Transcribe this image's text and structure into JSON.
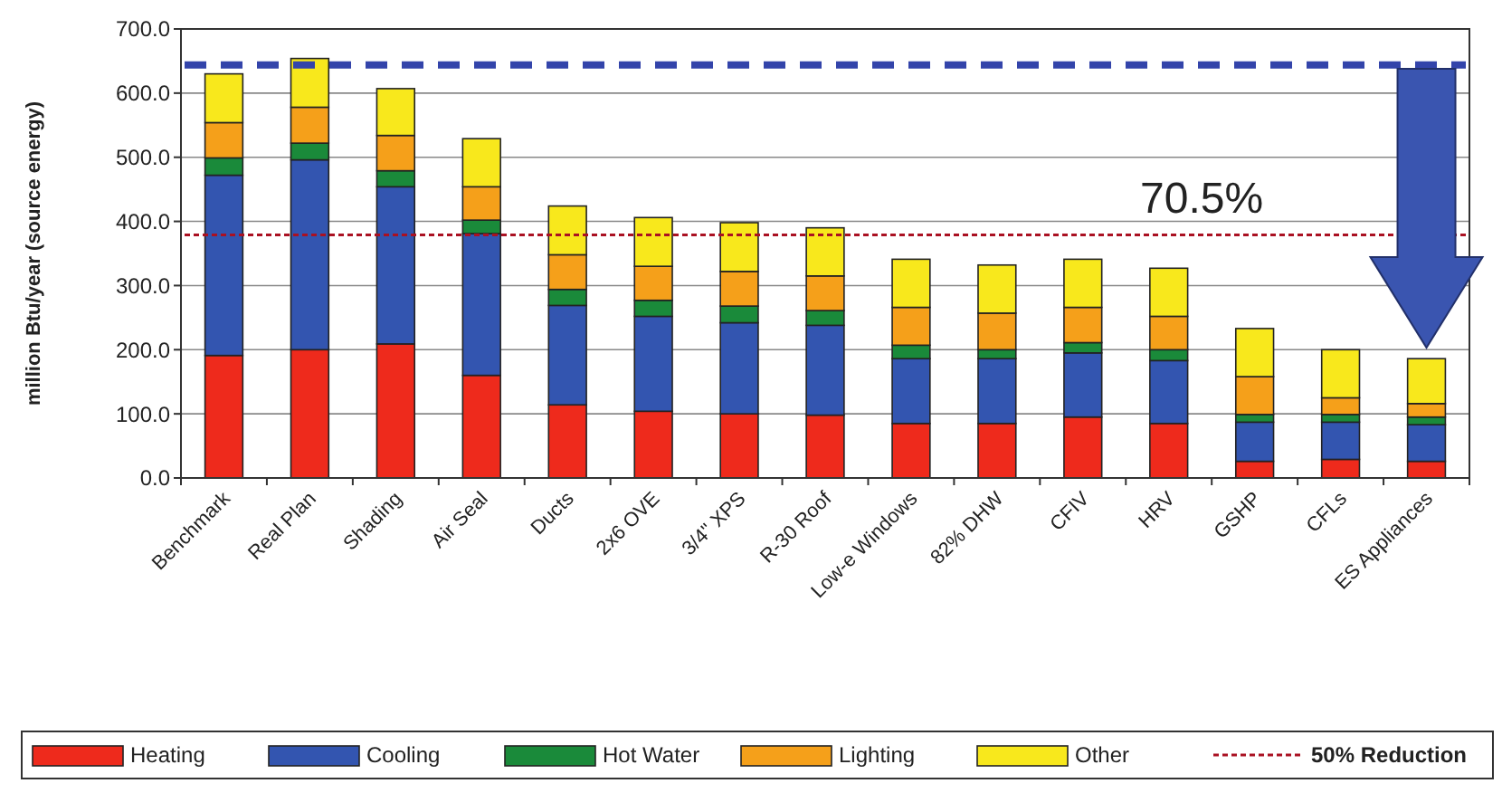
{
  "chart_data": {
    "type": "bar",
    "stacked": true,
    "ylabel": "million Btu/year (source energy)",
    "categories": [
      "Benchmark",
      "Real Plan",
      "Shading",
      "Air Seal",
      "Ducts",
      "2x6 OVE",
      "3/4\" XPS",
      "R-30 Roof",
      "Low-e Windows",
      "82% DHW",
      "CFIV",
      "HRV",
      "GSHP",
      "CFLs",
      "ES Appliances"
    ],
    "series": [
      {
        "name": "Heating",
        "color": "#ee2a1c",
        "values": [
          191,
          200,
          209,
          160,
          114,
          104,
          100,
          98,
          85,
          85,
          95,
          85,
          26,
          29,
          26
        ]
      },
      {
        "name": "Cooling",
        "color": "#3355b0",
        "values": [
          281,
          296,
          245,
          221,
          155,
          148,
          142,
          140,
          101,
          101,
          100,
          98,
          61,
          58,
          57
        ]
      },
      {
        "name": "Hot Water",
        "color": "#1a8a3a",
        "values": [
          27,
          26,
          25,
          21,
          25,
          25,
          26,
          23,
          21,
          14,
          16,
          17,
          12,
          12,
          12
        ]
      },
      {
        "name": "Lighting",
        "color": "#f5a01a",
        "values": [
          55,
          56,
          55,
          52,
          54,
          53,
          54,
          54,
          59,
          57,
          55,
          52,
          59,
          26,
          21
        ]
      },
      {
        "name": "Other",
        "color": "#f8e81c",
        "values": [
          76,
          76,
          73,
          75,
          76,
          76,
          76,
          75,
          75,
          75,
          75,
          75,
          75,
          75,
          70
        ]
      }
    ],
    "ylim": [
      0,
      700
    ],
    "yticks": [
      {
        "value": 0,
        "label": "0.0"
      },
      {
        "value": 100,
        "label": "100.0"
      },
      {
        "value": 200,
        "label": "200.0"
      },
      {
        "value": 300,
        "label": "300.0"
      },
      {
        "value": 400,
        "label": "400.0"
      },
      {
        "value": 500,
        "label": "500.0"
      },
      {
        "value": 600,
        "label": "600.0"
      },
      {
        "value": 700,
        "label": "700.0"
      }
    ],
    "grid": "y",
    "legend": "bottom",
    "ref_lines": [
      {
        "axis": "y",
        "value": 644,
        "color": "#3344aa",
        "line_style": "dashed"
      },
      {
        "axis": "y",
        "value": 379,
        "label": "50% Reduction",
        "color": "#aa1122",
        "line_style": "dotted"
      }
    ],
    "annotations": [
      "70.5%"
    ]
  }
}
